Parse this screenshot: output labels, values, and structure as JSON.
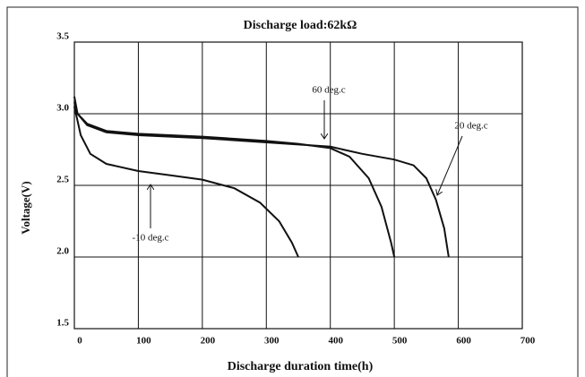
{
  "chart_data": {
    "type": "line",
    "title": "Discharge load:62kΩ",
    "xlabel": "Discharge duration time(h)",
    "ylabel": "Voltage(V)",
    "xlim": [
      0,
      700
    ],
    "xticks": [
      0,
      100,
      200,
      300,
      400,
      500,
      600,
      700
    ],
    "ylim": [
      1.5,
      3.5
    ],
    "yticks": [
      1.5,
      {
        "value": 2.0,
        "label": "2.0"
      },
      2.5,
      {
        "value": 3.0,
        "label": "3.0"
      },
      3.5
    ],
    "grid": true,
    "series": [
      {
        "name": "60 deg.c",
        "color": "#111111",
        "x": [
          0,
          5,
          20,
          50,
          100,
          200,
          300,
          350,
          400,
          430,
          460,
          480,
          495,
          500
        ],
        "y": [
          3.12,
          3.0,
          2.93,
          2.88,
          2.86,
          2.84,
          2.81,
          2.79,
          2.76,
          2.7,
          2.55,
          2.35,
          2.1,
          2.0
        ]
      },
      {
        "name": "20 deg.c",
        "color": "#111111",
        "x": [
          0,
          5,
          20,
          50,
          100,
          200,
          300,
          400,
          450,
          500,
          530,
          550,
          565,
          578,
          585
        ],
        "y": [
          3.08,
          3.0,
          2.92,
          2.87,
          2.85,
          2.83,
          2.8,
          2.77,
          2.72,
          2.68,
          2.64,
          2.55,
          2.4,
          2.2,
          2.0
        ]
      },
      {
        "name": "-10 deg.c",
        "color": "#111111",
        "x": [
          0,
          10,
          25,
          50,
          100,
          150,
          200,
          250,
          290,
          320,
          340,
          350
        ],
        "y": [
          3.05,
          2.85,
          2.72,
          2.65,
          2.6,
          2.57,
          2.54,
          2.48,
          2.38,
          2.25,
          2.1,
          2.0
        ]
      }
    ]
  }
}
